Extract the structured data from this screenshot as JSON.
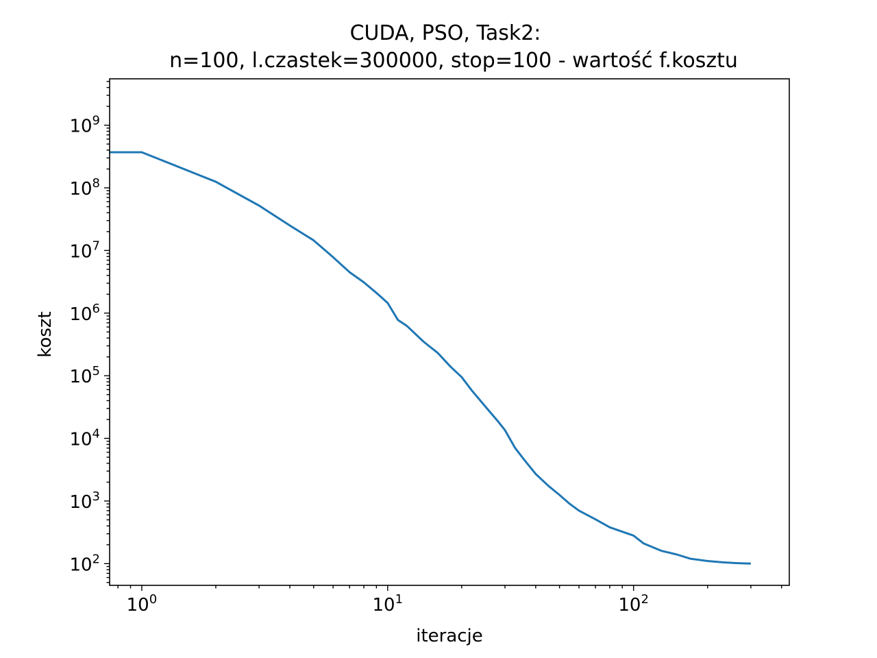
{
  "chart_data": {
    "type": "line",
    "title": "CUDA, PSO, Task2:",
    "subtitle": "n=100, l.czastek=300000, stop=100 - wartość f.kosztu",
    "xlabel": "iteracje",
    "ylabel": "koszt",
    "x_scale": "log",
    "y_scale": "log",
    "xlim": [
      0.74,
      430
    ],
    "ylim": [
      45,
      5500000000
    ],
    "x_ticks": [
      {
        "value": 1,
        "base": "10",
        "exp": "0"
      },
      {
        "value": 10,
        "base": "10",
        "exp": "1"
      },
      {
        "value": 100,
        "base": "10",
        "exp": "2"
      }
    ],
    "y_ticks": [
      {
        "value": 100,
        "base": "10",
        "exp": "2"
      },
      {
        "value": 1000,
        "base": "10",
        "exp": "3"
      },
      {
        "value": 10000,
        "base": "10",
        "exp": "4"
      },
      {
        "value": 100000,
        "base": "10",
        "exp": "5"
      },
      {
        "value": 1000000,
        "base": "10",
        "exp": "6"
      },
      {
        "value": 10000000,
        "base": "10",
        "exp": "7"
      },
      {
        "value": 100000000,
        "base": "10",
        "exp": "8"
      },
      {
        "value": 1000000000,
        "base": "10",
        "exp": "9"
      }
    ],
    "grid": false,
    "series": [
      {
        "color": "#1f77b4",
        "x": [
          0.74,
          1,
          2,
          3,
          4,
          5,
          6,
          7,
          8,
          9,
          10,
          11,
          12,
          14,
          16,
          18,
          20,
          22,
          25,
          28,
          30,
          33,
          36,
          40,
          45,
          50,
          55,
          60,
          70,
          80,
          100,
          110,
          130,
          150,
          170,
          200,
          230,
          260,
          300
        ],
        "y": [
          370000000,
          370000000,
          125000000,
          52000000,
          25000000,
          14500000,
          7800000,
          4500000,
          3100000,
          2100000,
          1450000,
          780000,
          620000,
          350000,
          230000,
          140000,
          95000,
          58000,
          32000,
          19000,
          13500,
          7000,
          4500,
          2700,
          1750,
          1250,
          900,
          700,
          510,
          380,
          280,
          210,
          160,
          140,
          120,
          110,
          105,
          102,
          100
        ]
      }
    ]
  }
}
